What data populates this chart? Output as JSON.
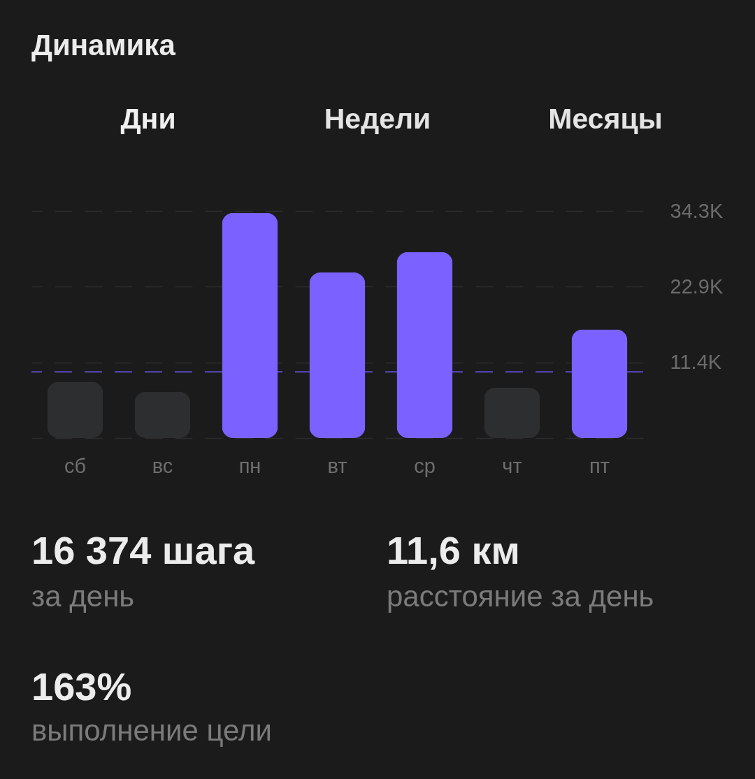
{
  "chart_data": {
    "type": "bar",
    "title": "Динамика",
    "annotations": [
      "Дни",
      "Недели",
      "Месяцы",
      "16 374 шага",
      "за день",
      "11,6 км",
      "расстояние за день",
      "163%",
      "выполнение цели"
    ],
    "categories": [
      "сб",
      "вс",
      "пн",
      "вт",
      "ср",
      "чт",
      "пт"
    ],
    "values": [
      8500,
      7000,
      34000,
      25000,
      28100,
      7600,
      16400
    ],
    "colors": [
      "#2d2e30",
      "#2d2e30",
      "#7b61ff",
      "#7b61ff",
      "#7b61ff",
      "#2d2e30",
      "#7b61ff"
    ],
    "ylim": [
      0,
      34300
    ],
    "yticks": [
      {
        "value": 0,
        "label": null
      },
      {
        "value": 11400,
        "label": "11.4K"
      },
      {
        "value": 22900,
        "label": "22.9K"
      },
      {
        "value": 34300,
        "label": "34.3K"
      }
    ],
    "grid": "y",
    "ref_lines": [
      {
        "axis": "y",
        "value": 10000,
        "color": "#5a4bc4",
        "line_style": "dashed"
      }
    ]
  }
}
